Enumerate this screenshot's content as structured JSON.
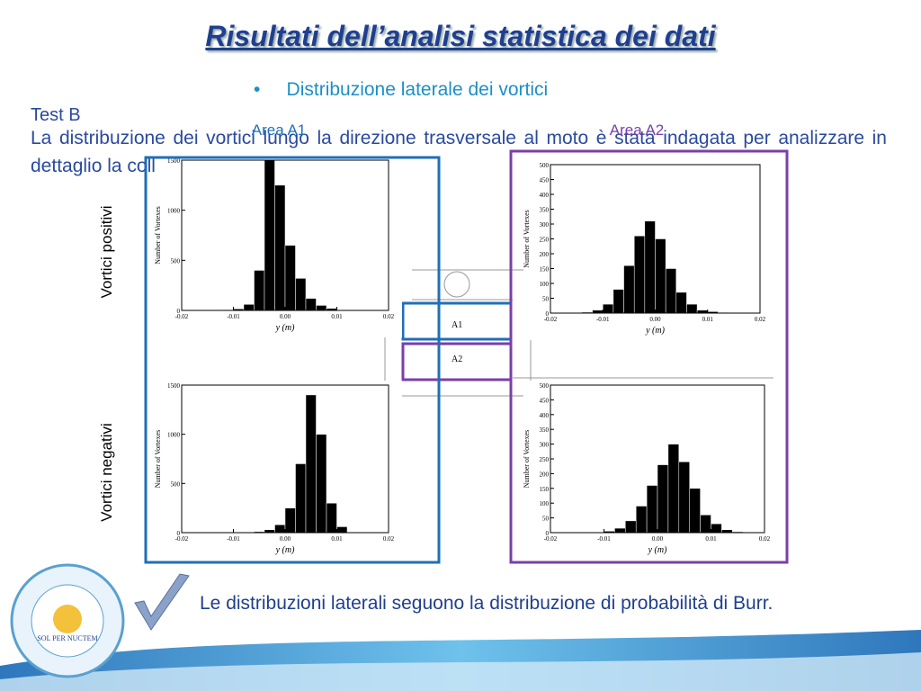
{
  "slide": {
    "title": "Risultati dell’analisi statistica dei dati",
    "bullet": "Distribuzione laterale dei vortici",
    "test": "Test B",
    "paragraph": "La distribuzione dei vortici lungo la direzione trasversale al moto è stata indagata per analizzare in dettaglio la collocazione spaziale dei vortici.",
    "column_labels": [
      "Area A1",
      "Area A2"
    ],
    "row_labels": [
      "Vortici positivi",
      "Vortici negativi"
    ],
    "diagram_labels": [
      "A1",
      "A2"
    ],
    "conclusion": "Le distribuzioni laterali seguono la distribuzione di probabilità di Burr.",
    "logo_motto": "SOL PER NUCTEM"
  },
  "chart_data": [
    {
      "type": "histogram",
      "xlabel": "y (m)",
      "ylabel": "Number of Vortexes",
      "bins": [
        -0.012,
        -0.01,
        -0.008,
        -0.006,
        -0.004,
        -0.002,
        0,
        0.002,
        0.004,
        0.006,
        0.008,
        0.01
      ],
      "values": [
        5,
        15,
        60,
        400,
        1500,
        1250,
        650,
        320,
        120,
        50,
        20
      ],
      "xlim": [
        -0.02,
        0.02
      ],
      "ylim": [
        0,
        1500
      ],
      "xticks": [
        -0.02,
        -0.01,
        {
          "value": 0,
          "label": "0.00"
        },
        0.01,
        0.02
      ],
      "yticks": [
        0,
        500,
        1000,
        1500
      ]
    },
    {
      "type": "histogram",
      "xlabel": "y (m)",
      "ylabel": "Number of Vortexes",
      "bins": [
        -0.014,
        -0.012,
        -0.01,
        -0.008,
        -0.006,
        -0.004,
        -0.002,
        0,
        0.002,
        0.004,
        0.006,
        0.008,
        0.01,
        0.012,
        0.014
      ],
      "values": [
        3,
        10,
        30,
        80,
        160,
        260,
        310,
        250,
        150,
        70,
        30,
        10,
        5,
        2
      ],
      "xlim": [
        -0.02,
        0.02
      ],
      "ylim": [
        0,
        500
      ],
      "xticks": [
        -0.02,
        -0.01,
        {
          "value": 0,
          "label": "0.00"
        },
        0.01,
        0.02
      ],
      "yticks": [
        0,
        50,
        100,
        150,
        200,
        250,
        300,
        350,
        400,
        450,
        500
      ]
    },
    {
      "type": "histogram",
      "xlabel": "y (m)",
      "ylabel": "Number of Vortexes",
      "bins": [
        -0.006,
        -0.004,
        -0.002,
        0,
        0.002,
        0.004,
        0.006,
        0.008,
        0.01,
        0.012
      ],
      "values": [
        10,
        30,
        80,
        250,
        700,
        1400,
        1000,
        300,
        60
      ],
      "xlim": [
        -0.02,
        0.02
      ],
      "ylim": [
        0,
        1500
      ],
      "xticks": [
        -0.02,
        -0.01,
        {
          "value": 0,
          "label": "0.00"
        },
        0.01,
        0.02
      ],
      "yticks": [
        0,
        500,
        1000,
        1500
      ]
    },
    {
      "type": "histogram",
      "xlabel": "y (m)",
      "ylabel": "Number of Vortexes",
      "bins": [
        -0.01,
        -0.008,
        -0.006,
        -0.004,
        -0.002,
        0,
        0.002,
        0.004,
        0.006,
        0.008,
        0.01,
        0.012,
        0.014,
        0.016
      ],
      "values": [
        5,
        15,
        40,
        90,
        160,
        230,
        300,
        240,
        150,
        60,
        30,
        10,
        3
      ],
      "xlim": [
        -0.02,
        0.02
      ],
      "ylim": [
        0,
        500
      ],
      "xticks": [
        -0.02,
        -0.01,
        {
          "value": 0,
          "label": "0.00"
        },
        0.01,
        0.02
      ],
      "yticks": [
        0,
        50,
        100,
        150,
        200,
        250,
        300,
        350,
        400,
        450,
        500
      ]
    }
  ]
}
